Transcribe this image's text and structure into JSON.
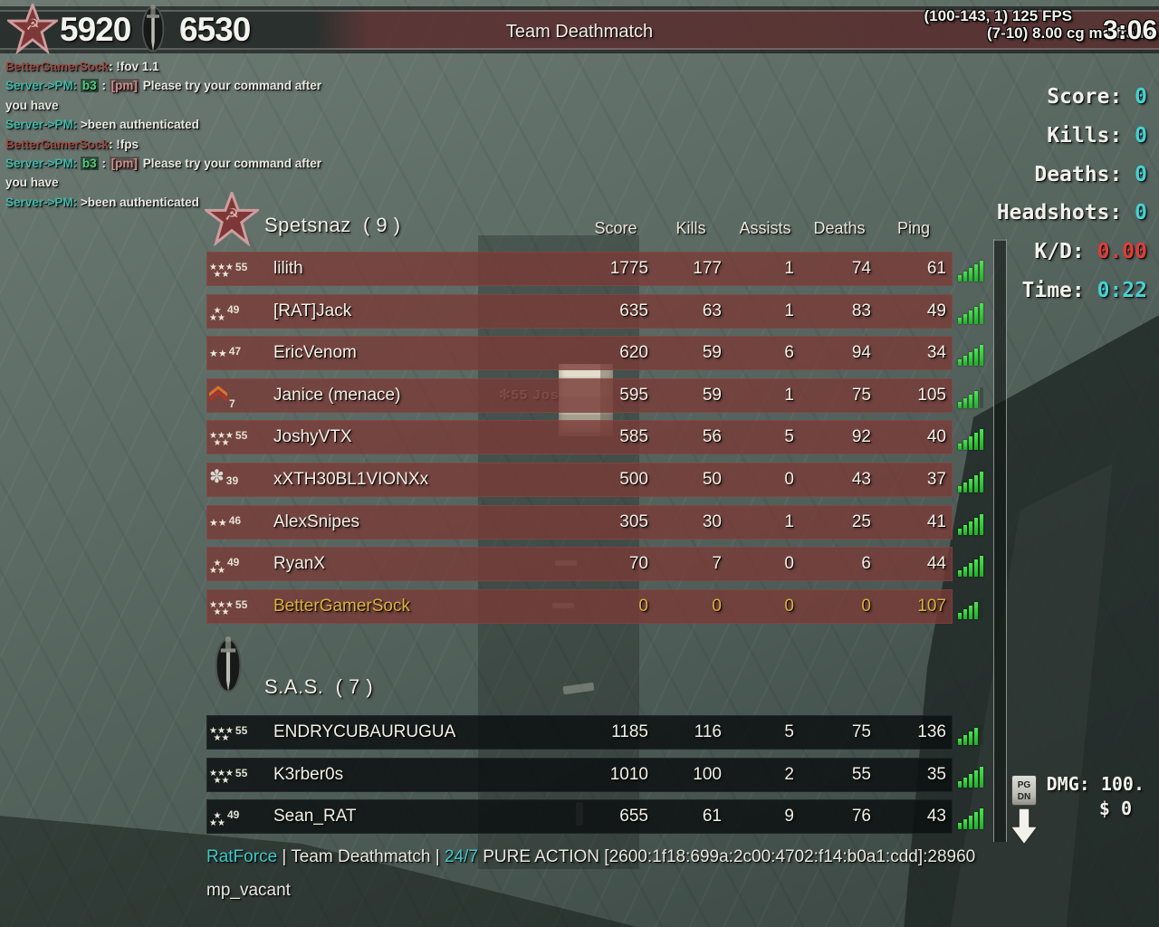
{
  "top_bar": {
    "team1_score": "5920",
    "team2_score": "6530",
    "gametype": "Team Deathmatch",
    "fps_line1": "(100-143, 1) 125 FPS",
    "fps_line2": "(7-10) 8.00 cg ms/frame",
    "round_timer": "3:06"
  },
  "chat": {
    "lines": [
      [
        {
          "t": "BetterGamerSock",
          "c": "name"
        },
        {
          "t": ": !fov 1.1",
          "c": "white"
        }
      ],
      [
        {
          "t": "Server->PM: ",
          "c": "sys"
        },
        {
          "t": "b3",
          "c": "chip"
        },
        {
          "t": " : ",
          "c": "white"
        },
        {
          "t": "[pm]",
          "c": "pm"
        },
        {
          "t": " Please try your command after",
          "c": "white"
        }
      ],
      [
        {
          "t": "you have",
          "c": "white"
        }
      ],
      [
        {
          "t": "Server->PM: ",
          "c": "sys"
        },
        {
          "t": ">been authenticated",
          "c": "white"
        }
      ],
      [
        {
          "t": "BetterGamerSock",
          "c": "name"
        },
        {
          "t": ": !fps",
          "c": "white"
        }
      ],
      [
        {
          "t": "Server->PM: ",
          "c": "sys"
        },
        {
          "t": "b3",
          "c": "chip"
        },
        {
          "t": " : ",
          "c": "white"
        },
        {
          "t": "[pm]",
          "c": "pm"
        },
        {
          "t": " Please try your command after",
          "c": "white"
        }
      ],
      [
        {
          "t": "you have",
          "c": "white"
        }
      ],
      [
        {
          "t": "Server->PM: ",
          "c": "sys"
        },
        {
          "t": ">been authenticated",
          "c": "white"
        }
      ]
    ]
  },
  "stats_panel": {
    "rows": [
      {
        "label": "Score: ",
        "value": "0",
        "color": "cyan"
      },
      {
        "label": "Kills: ",
        "value": "0",
        "color": "cyan"
      },
      {
        "label": "Deaths: ",
        "value": "0",
        "color": "cyan"
      },
      {
        "label": "Headshots: ",
        "value": "0",
        "color": "cyan"
      },
      {
        "label": "K/D: ",
        "value": "0.00",
        "color": "red"
      },
      {
        "label": "Time: ",
        "value": "0:22",
        "color": "cyan"
      }
    ]
  },
  "scoreboard": {
    "columns": [
      "Score",
      "Kills",
      "Assists",
      "Deaths",
      "Ping"
    ],
    "teams": [
      {
        "name": "Spetsnaz",
        "count": "( 9 )",
        "players": [
          {
            "rank": "55",
            "icon": "stars5-rank-icon",
            "name": "lilith",
            "score": "1775",
            "kills": "177",
            "assists": "1",
            "deaths": "74",
            "ping": "61",
            "self": false
          },
          {
            "rank": "49",
            "icon": "stars3-rank-icon",
            "name": "[RAT]Jack",
            "score": "635",
            "kills": "63",
            "assists": "1",
            "deaths": "83",
            "ping": "49",
            "self": false
          },
          {
            "rank": "47",
            "icon": "stars2-rank-icon",
            "name": "EricVenom",
            "score": "620",
            "kills": "59",
            "assists": "6",
            "deaths": "94",
            "ping": "34",
            "self": false
          },
          {
            "rank": "7",
            "icon": "chevron-rank-icon",
            "name": "Janice (menace)",
            "score": "595",
            "kills": "59",
            "assists": "1",
            "deaths": "75",
            "ping": "105",
            "self": false
          },
          {
            "rank": "55",
            "icon": "stars5-rank-icon",
            "name": "JoshyVTX",
            "score": "585",
            "kills": "56",
            "assists": "5",
            "deaths": "92",
            "ping": "40",
            "self": false
          },
          {
            "rank": "39",
            "icon": "badge-rank-icon",
            "name": "xXTH30BL1VIONXx",
            "score": "500",
            "kills": "50",
            "assists": "0",
            "deaths": "43",
            "ping": "37",
            "self": false
          },
          {
            "rank": "46",
            "icon": "stars2-rank-icon",
            "name": "AlexSnipes",
            "score": "305",
            "kills": "30",
            "assists": "1",
            "deaths": "25",
            "ping": "41",
            "self": false
          },
          {
            "rank": "49",
            "icon": "stars3-rank-icon",
            "name": "RyanX",
            "score": "70",
            "kills": "7",
            "assists": "0",
            "deaths": "6",
            "ping": "44",
            "self": false
          },
          {
            "rank": "55",
            "icon": "stars5-rank-icon",
            "name": "BetterGamerSock",
            "score": "0",
            "kills": "0",
            "assists": "0",
            "deaths": "0",
            "ping": "107",
            "self": true
          }
        ]
      },
      {
        "name": "S.A.S.",
        "count": "( 7 )",
        "players": [
          {
            "rank": "55",
            "icon": "stars5-rank-icon",
            "name": "ENDRYCUBAURUGUA",
            "score": "1185",
            "kills": "116",
            "assists": "5",
            "deaths": "75",
            "ping": "136",
            "self": false
          },
          {
            "rank": "55",
            "icon": "stars5-rank-icon",
            "name": "K3rber0s",
            "score": "1010",
            "kills": "100",
            "assists": "2",
            "deaths": "55",
            "ping": "35",
            "self": false
          },
          {
            "rank": "49",
            "icon": "stars3-rank-icon",
            "name": "Sean_RAT",
            "score": "655",
            "kills": "61",
            "assists": "9",
            "deaths": "76",
            "ping": "43",
            "self": false
          }
        ]
      }
    ]
  },
  "world": {
    "nametag_rank": "55",
    "nametag_name": "JoshyVTX",
    "nametag_prefix": "✻"
  },
  "pgdn": {
    "key_line1": "PG",
    "key_line2": "DN"
  },
  "dmg_panel": {
    "damage": "DMG: 100.",
    "money": "$ 0"
  },
  "server_info": {
    "segments": [
      {
        "t": "RatForce",
        "c": "cyan"
      },
      {
        "t": " | Team Deathmatch | ",
        "c": "white"
      },
      {
        "t": "24/7",
        "c": "cyan"
      },
      {
        "t": " PURE ACTION  [2600:1f18:699a:2c00:4702:f14:b0a1:cdd]:28960",
        "c": "white"
      }
    ],
    "map": "mp_vacant"
  }
}
